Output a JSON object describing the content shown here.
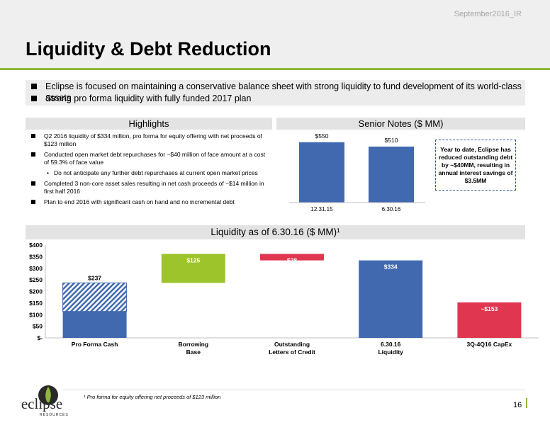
{
  "header": {
    "date": "September2016_IR",
    "title": "Liquidity & Debt Reduction"
  },
  "top_bullets": [
    "Eclipse is focused on maintaining a conservative balance sheet with strong liquidity to fund development of its world-class assets",
    "Strong pro forma liquidity with fully funded 2017 plan"
  ],
  "highlights": {
    "heading": "Highlights",
    "items": [
      "Q2 2016 liquidity of $334 million, pro forma for equity offering with net proceeds of $123 million",
      "Conducted open market debt repurchases for ~$40 million of face amount at a cost of 59.3% of face value",
      "Completed 3 non-core asset sales resulting in net cash proceeds of ~$14 million in first half 2016",
      "Plan to end 2016 with significant cash on hand and no incremental debt"
    ],
    "sub_item": "Do not anticipate any further debt repurchases at current open market prices"
  },
  "senior_notes_heading": "Senior Notes ($ MM)",
  "callout": "Year to date, Eclipse has reduced outstanding debt by ~$40MM, resulting in annual interest savings of $3.5MM",
  "liquidity_heading": "Liquidity as of 6.30.16 ($ MM)¹",
  "footnote": "¹ Pro forma for equity offering net proceeds of $123 million",
  "page_number": "16",
  "logo": {
    "word": "eclipse",
    "sub": "RESOURCES"
  },
  "colors": {
    "blue": "#4169b0",
    "green": "#9dc42a",
    "red": "#e0364f",
    "accent_rule": "#8fb83a"
  },
  "chart_data": [
    {
      "type": "bar",
      "title": "Senior Notes ($ MM)",
      "categories": [
        "12.31.15",
        "6.30.16"
      ],
      "values": [
        550,
        510
      ],
      "data_labels": [
        "$550",
        "$510"
      ],
      "ylim": [
        0,
        600
      ],
      "grid": false
    },
    {
      "type": "bar",
      "subtype": "waterfall",
      "title": "Liquidity as of 6.30.16 ($ MM)¹",
      "categories": [
        "Pro Forma Cash",
        "Borrowing Base",
        "Outstanding Letters of Credit",
        "6.30.16 Liquidity",
        "3Q-4Q16 CapEx"
      ],
      "category_lines": [
        [
          "Pro Forma Cash"
        ],
        [
          "Borrowing",
          "Base"
        ],
        [
          "Outstanding",
          "Letters of Credit"
        ],
        [
          "6.30.16",
          "Liquidity"
        ],
        [
          "3Q-4Q16 CapEx"
        ]
      ],
      "bars": [
        {
          "base": 0,
          "value": 237,
          "label": "$237",
          "color": "#4169b0",
          "cash_value": 114,
          "pro_forma_value": 123
        },
        {
          "base": 237,
          "value": 125,
          "label": "$125",
          "color": "#9dc42a"
        },
        {
          "base": 334,
          "value": 28,
          "label": "$28",
          "color": "#e0364f"
        },
        {
          "base": 0,
          "value": 334,
          "label": "$334",
          "color": "#4169b0"
        },
        {
          "base": 0,
          "value": 153,
          "label": "~$153",
          "color": "#e0364f"
        }
      ],
      "yticks": [
        "$-",
        "$50",
        "$100",
        "$150",
        "$200",
        "$250",
        "$300",
        "$350",
        "$400"
      ],
      "ylim": [
        0,
        400
      ],
      "grid": false
    }
  ]
}
